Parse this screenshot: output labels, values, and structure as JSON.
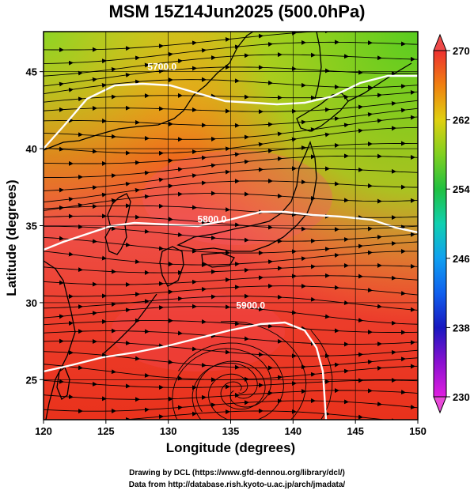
{
  "title": "MSM 15Z14Jun2025 (500.0hPa)",
  "chart_data": {
    "type": "heatmap",
    "title": "MSM 15Z14Jun2025 (500.0hPa)",
    "xlabel": "Longitude (degrees)",
    "ylabel": "Latitude  (degrees)",
    "xlim": [
      120,
      150
    ],
    "ylim": [
      22.4,
      47.6
    ],
    "x_ticks": [
      120,
      125,
      130,
      135,
      140,
      145,
      150
    ],
    "y_ticks": [
      25,
      30,
      35,
      40,
      45
    ],
    "colorbar": {
      "min": 230,
      "max": 270,
      "ticks": [
        230,
        238,
        246,
        254,
        262,
        270
      ]
    },
    "contours": [
      {
        "label": "5700.0",
        "label_lon": 129.5,
        "label_lat": 45.1
      },
      {
        "label": "5800.0",
        "label_lon": 133.5,
        "label_lat": 35.2
      },
      {
        "label": "5900.0",
        "label_lon": 136.6,
        "label_lat": 29.6
      }
    ]
  },
  "credits": {
    "line1": "Drawing by DCL (https://www.gfd-dennou.org/library/dcl/)",
    "line2": "Data from http://database.rish.kyoto-u.ac.jp/arch/jmadata/"
  },
  "colors": {
    "high": "#ef4a4a",
    "mid_orange": "#f57a10",
    "low_green": "#5acd1e",
    "contour": "#ffffff",
    "coast": "#000000"
  }
}
